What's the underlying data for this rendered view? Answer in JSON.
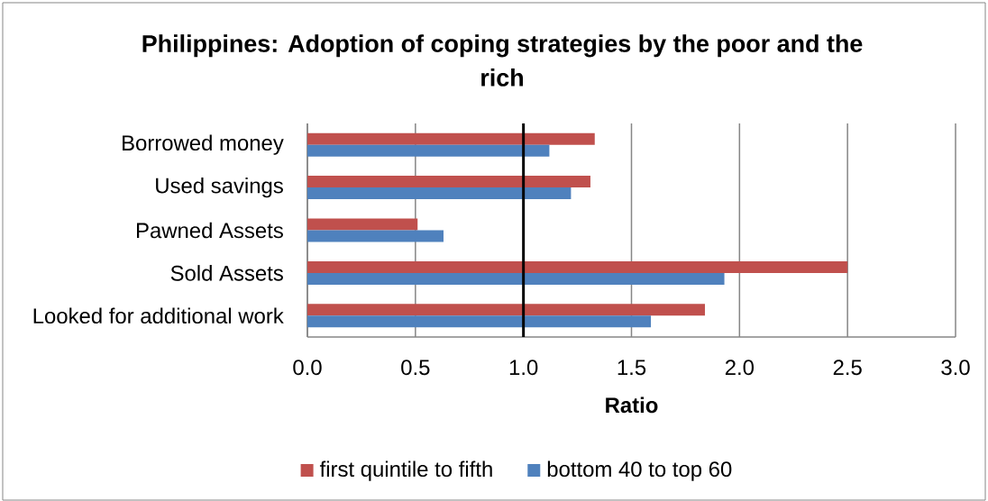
{
  "chart_data": {
    "type": "bar",
    "orientation": "horizontal",
    "title": "Philippines: Adoption of coping strategies by the poor and the rich",
    "xlabel": "Ratio",
    "categories": [
      "Borrowed money",
      "Used savings",
      "Pawned Assets",
      "Sold Assets",
      "Looked for additional work"
    ],
    "series": [
      {
        "name": "first quintile to fifth",
        "color": "#c0504d",
        "values": [
          1.33,
          1.31,
          0.51,
          2.5,
          1.84
        ]
      },
      {
        "name": "bottom 40 to top 60",
        "color": "#4f81bd",
        "values": [
          1.12,
          1.22,
          0.63,
          1.93,
          1.59
        ]
      }
    ],
    "xlim": [
      0,
      3
    ],
    "xticks": [
      {
        "value": 0,
        "label": "0.0"
      },
      0.5,
      {
        "value": 1,
        "label": "1.0"
      },
      1.5,
      {
        "value": 2,
        "label": "2.0"
      },
      2.5,
      {
        "value": 3,
        "label": "3.0"
      }
    ],
    "grid": "x",
    "legend": "bottom",
    "ref_lines": [
      {
        "axis": "x",
        "value": 1,
        "color": "#000000"
      }
    ]
  }
}
